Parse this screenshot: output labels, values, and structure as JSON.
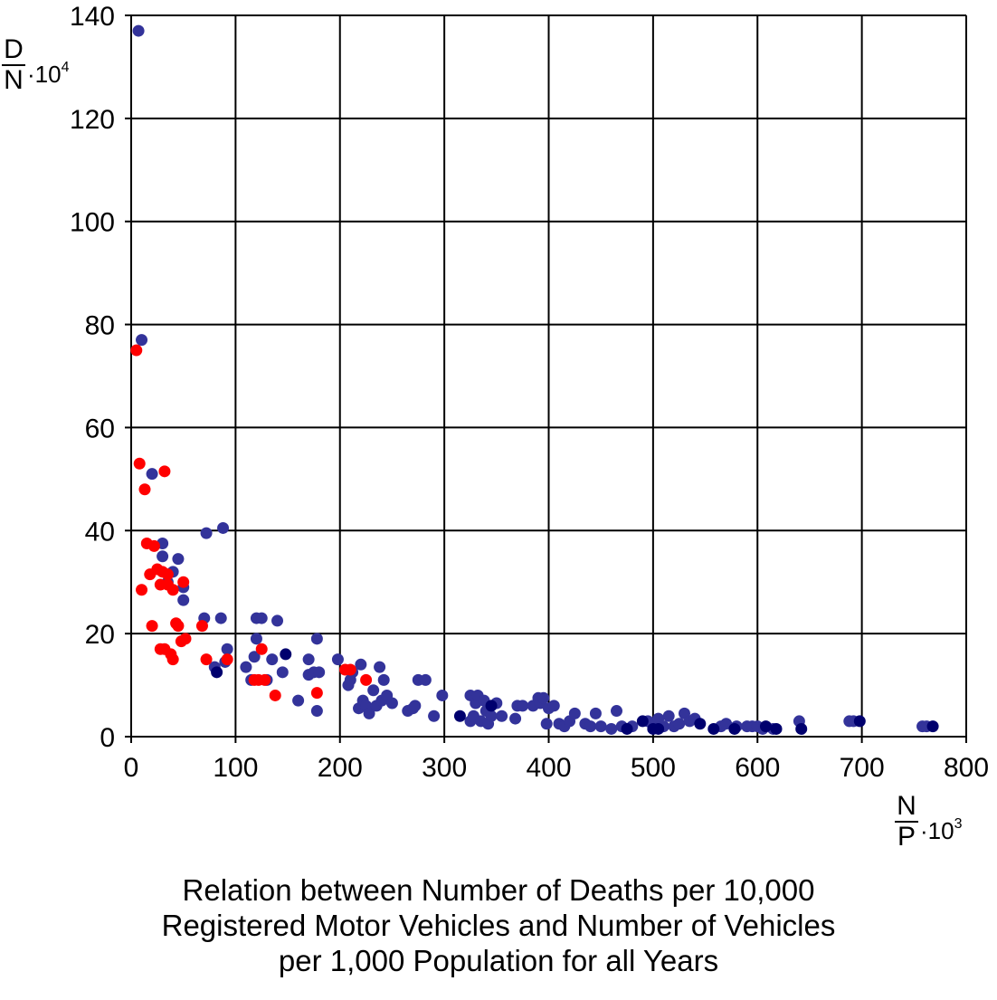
{
  "chart_data": {
    "type": "scatter",
    "title": "",
    "caption": [
      "Relation between Number of Deaths per 10,000",
      "Registered Motor Vehicles and Number of Vehicles",
      "per 1,000 Population for all Years"
    ],
    "xlabel": {
      "numerator": "N",
      "denominator": "P",
      "multiplier": "·10",
      "exponent": "3"
    },
    "ylabel": {
      "numerator": "D",
      "denominator": "N",
      "multiplier": "·10",
      "exponent": "4"
    },
    "xlim": [
      0,
      800
    ],
    "ylim": [
      0,
      140
    ],
    "xticks": [
      0,
      100,
      200,
      300,
      400,
      500,
      600,
      700,
      800
    ],
    "yticks": [
      0,
      20,
      40,
      60,
      80,
      100,
      120,
      140
    ],
    "grid": true,
    "series": [
      {
        "name": "blue",
        "color": "#33339a",
        "points": [
          [
            7,
            137
          ],
          [
            10,
            77
          ],
          [
            20,
            51
          ],
          [
            30,
            37.5
          ],
          [
            30,
            35
          ],
          [
            35,
            30
          ],
          [
            40,
            32
          ],
          [
            45,
            34.5
          ],
          [
            50,
            29
          ],
          [
            50,
            26.5
          ],
          [
            70,
            23
          ],
          [
            72,
            39.5
          ],
          [
            88,
            40.5
          ],
          [
            86,
            23
          ],
          [
            80,
            13.5
          ],
          [
            90,
            14.5
          ],
          [
            92,
            17
          ],
          [
            110,
            13.5
          ],
          [
            115,
            11
          ],
          [
            118,
            15.5
          ],
          [
            120,
            19
          ],
          [
            120,
            23
          ],
          [
            125,
            23
          ],
          [
            130,
            11
          ],
          [
            135,
            15
          ],
          [
            140,
            22.5
          ],
          [
            145,
            12.5
          ],
          [
            160,
            7
          ],
          [
            170,
            12
          ],
          [
            170,
            15
          ],
          [
            175,
            12.5
          ],
          [
            178,
            19
          ],
          [
            178,
            5
          ],
          [
            180,
            12.5
          ],
          [
            198,
            15
          ],
          [
            208,
            10
          ],
          [
            210,
            11
          ],
          [
            212,
            12.5
          ],
          [
            218,
            5.5
          ],
          [
            220,
            14
          ],
          [
            222,
            7
          ],
          [
            225,
            6
          ],
          [
            228,
            4.5
          ],
          [
            232,
            9
          ],
          [
            235,
            6
          ],
          [
            238,
            13.5
          ],
          [
            240,
            7
          ],
          [
            242,
            11
          ],
          [
            245,
            8
          ],
          [
            250,
            6.5
          ],
          [
            265,
            5
          ],
          [
            270,
            5.5
          ],
          [
            272,
            6
          ],
          [
            275,
            11
          ],
          [
            282,
            11
          ],
          [
            290,
            4
          ],
          [
            298,
            8
          ],
          [
            325,
            3
          ],
          [
            325,
            8
          ],
          [
            328,
            4
          ],
          [
            330,
            6.5
          ],
          [
            332,
            8
          ],
          [
            335,
            3
          ],
          [
            338,
            7
          ],
          [
            340,
            5
          ],
          [
            342,
            2.5
          ],
          [
            345,
            4
          ],
          [
            350,
            6.5
          ],
          [
            355,
            4
          ],
          [
            368,
            3.5
          ],
          [
            370,
            6
          ],
          [
            375,
            6
          ],
          [
            385,
            6
          ],
          [
            390,
            7.5
          ],
          [
            392,
            6.5
          ],
          [
            395,
            7.5
          ],
          [
            398,
            2.5
          ],
          [
            400,
            5.5
          ],
          [
            405,
            6
          ],
          [
            410,
            2.5
          ],
          [
            415,
            2
          ],
          [
            420,
            3
          ],
          [
            425,
            4.5
          ],
          [
            435,
            2.5
          ],
          [
            440,
            2
          ],
          [
            445,
            4.5
          ],
          [
            450,
            2
          ],
          [
            460,
            1.5
          ],
          [
            465,
            5
          ],
          [
            470,
            2
          ],
          [
            480,
            2
          ],
          [
            495,
            3
          ],
          [
            500,
            2
          ],
          [
            505,
            3.5
          ],
          [
            510,
            2
          ],
          [
            515,
            4
          ],
          [
            520,
            2
          ],
          [
            525,
            2.5
          ],
          [
            530,
            4.5
          ],
          [
            535,
            3
          ],
          [
            540,
            3.5
          ],
          [
            565,
            2
          ],
          [
            570,
            2.5
          ],
          [
            580,
            2
          ],
          [
            590,
            2
          ],
          [
            595,
            2
          ],
          [
            600,
            2
          ],
          [
            605,
            1.5
          ],
          [
            615,
            1.5
          ],
          [
            640,
            3
          ],
          [
            688,
            3
          ],
          [
            692,
            3
          ],
          [
            758,
            2
          ],
          [
            762,
            2
          ]
        ]
      },
      {
        "name": "red",
        "color": "#ff0000",
        "points": [
          [
            5,
            75
          ],
          [
            8,
            53
          ],
          [
            10,
            28.5
          ],
          [
            13,
            48
          ],
          [
            15,
            37.5
          ],
          [
            18,
            31.5
          ],
          [
            20,
            21.5
          ],
          [
            22,
            37
          ],
          [
            25,
            32.5
          ],
          [
            28,
            17
          ],
          [
            28,
            29.5
          ],
          [
            30,
            32
          ],
          [
            32,
            51.5
          ],
          [
            32,
            17
          ],
          [
            35,
            29.5
          ],
          [
            35,
            31.5
          ],
          [
            38,
            16
          ],
          [
            40,
            28.5
          ],
          [
            40,
            15
          ],
          [
            43,
            22
          ],
          [
            45,
            21.5
          ],
          [
            48,
            18.5
          ],
          [
            50,
            30
          ],
          [
            52,
            19
          ],
          [
            68,
            21.5
          ],
          [
            72,
            15
          ],
          [
            92,
            15
          ],
          [
            118,
            11
          ],
          [
            122,
            11
          ],
          [
            125,
            17
          ],
          [
            128,
            11
          ],
          [
            138,
            8
          ],
          [
            178,
            8.5
          ],
          [
            205,
            13
          ],
          [
            210,
            13
          ],
          [
            225,
            11
          ]
        ]
      },
      {
        "name": "navy",
        "color": "#00006e",
        "points": [
          [
            82,
            12.5
          ],
          [
            148,
            16
          ],
          [
            315,
            4
          ],
          [
            345,
            6
          ],
          [
            475,
            1.5
          ],
          [
            490,
            3
          ],
          [
            500,
            1.5
          ],
          [
            505,
            1.5
          ],
          [
            545,
            2.5
          ],
          [
            558,
            1.5
          ],
          [
            578,
            1.5
          ],
          [
            608,
            2
          ],
          [
            618,
            1.5
          ],
          [
            642,
            1.5
          ],
          [
            698,
            3
          ],
          [
            768,
            2
          ]
        ]
      }
    ]
  }
}
